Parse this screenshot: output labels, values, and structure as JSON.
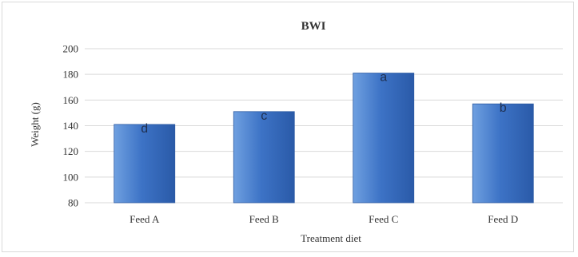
{
  "chart_data": {
    "type": "bar",
    "title": "BWI",
    "xlabel": "Treatment diet",
    "ylabel": "Weight (g)",
    "categories": [
      "Feed A",
      "Feed B",
      "Feed C",
      "Feed D"
    ],
    "values": [
      141,
      151,
      181,
      157
    ],
    "annotations": [
      "d",
      "c",
      "a",
      "b"
    ],
    "ylim": [
      80,
      200
    ],
    "yticks": [
      80,
      100,
      120,
      140,
      160,
      180,
      200
    ],
    "grid": true,
    "legend": "none",
    "colors": {
      "bar_light": "#6fa0e0",
      "bar_mid": "#3d73c6",
      "bar_dark": "#2a5aa8",
      "grid": "#d9d9d9"
    }
  }
}
